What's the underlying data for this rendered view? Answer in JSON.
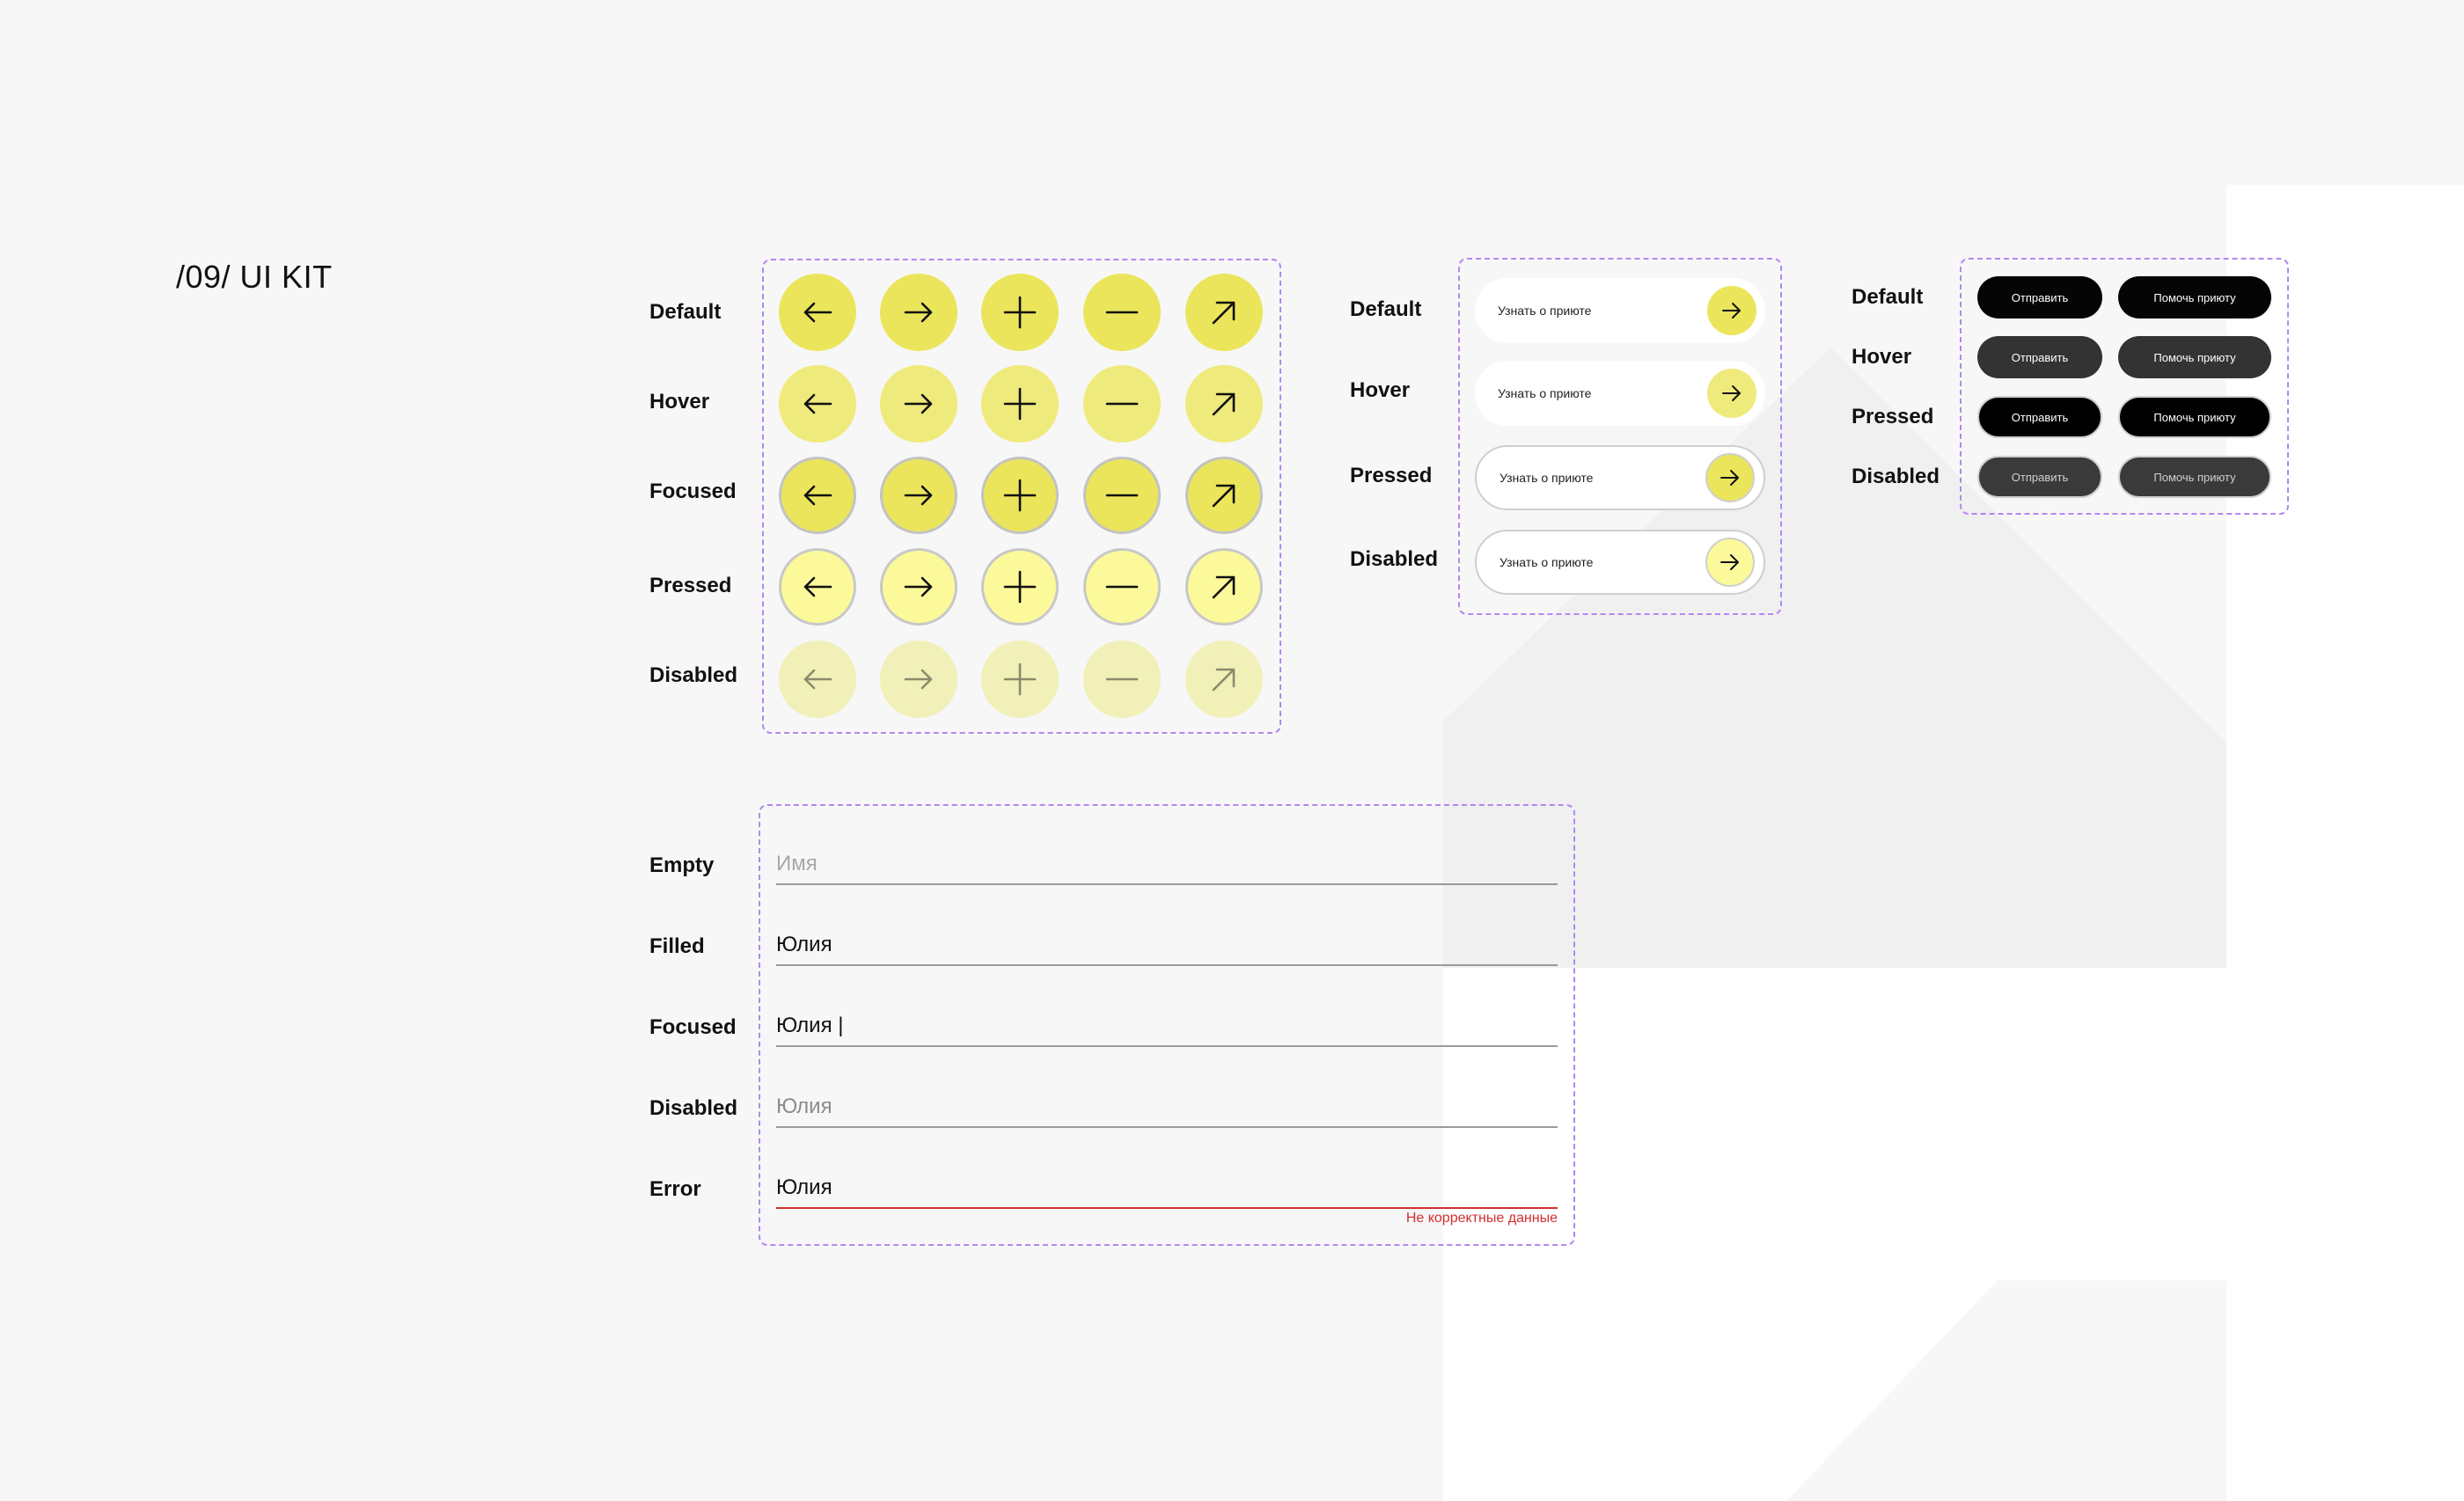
{
  "page_title": "/09/ UI KIT",
  "colors": {
    "accent_yellow": "#ebe55c",
    "accent_yellow_hover": "#efea7c",
    "accent_yellow_pressed": "#fbf99a",
    "accent_yellow_disabled": "#f1f0b8",
    "panel_border": "#b487f0",
    "error": "#d32f2f",
    "dark_button": "#050505"
  },
  "icon_buttons": {
    "states": [
      "Default",
      "Hover",
      "Focused",
      "Pressed",
      "Disabled"
    ],
    "icons": [
      "arrow-left-icon",
      "arrow-right-icon",
      "plus-icon",
      "minus-icon",
      "arrow-up-right-icon"
    ]
  },
  "pill_buttons": {
    "states": [
      "Default",
      "Hover",
      "Pressed",
      "Disabled"
    ],
    "label": "Узнать о приюте",
    "icon": "arrow-right-icon"
  },
  "dark_buttons": {
    "states": [
      "Default",
      "Hover",
      "Pressed",
      "Disabled"
    ],
    "primary_label": "Отправить",
    "secondary_label": "Помочь приюту"
  },
  "inputs": {
    "states": [
      "Empty",
      "Filled",
      "Focused",
      "Disabled",
      "Error"
    ],
    "placeholder": "Имя",
    "filled_value": "Юлия",
    "focused_value": "Юлия |",
    "disabled_value": "Юлия",
    "error_value": "Юлия",
    "error_message": "Не корректные данные"
  }
}
